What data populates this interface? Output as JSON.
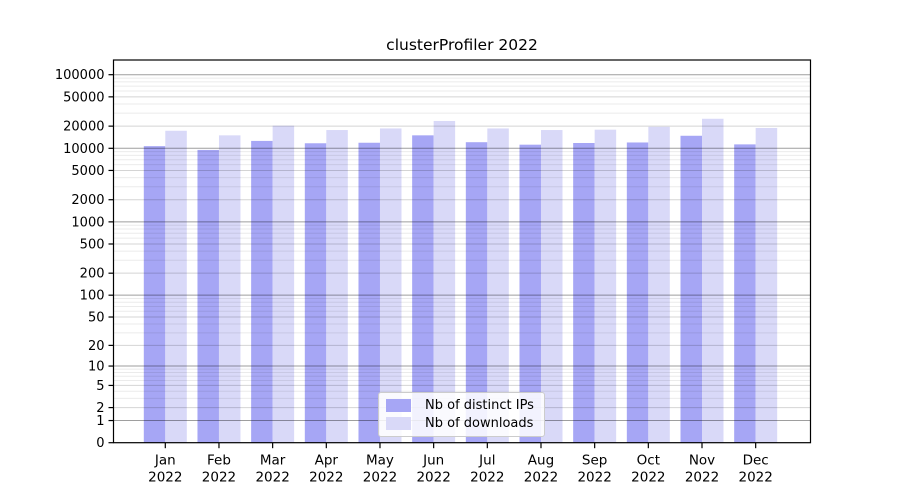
{
  "figure": {
    "title": "clusterProfiler 2022"
  },
  "chart_data": {
    "type": "bar",
    "title": "clusterProfiler 2022",
    "categories": [
      "Jan 2022",
      "Feb 2022",
      "Mar 2022",
      "Apr 2022",
      "May 2022",
      "Jun 2022",
      "Jul 2022",
      "Aug 2022",
      "Sep 2022",
      "Oct 2022",
      "Nov 2022",
      "Dec 2022"
    ],
    "series": [
      {
        "name": "Nb of distinct IPs",
        "color": "#a6a6f5",
        "values": [
          10700,
          9500,
          12600,
          11700,
          11900,
          15000,
          12100,
          11200,
          11800,
          12000,
          14800,
          11300
        ]
      },
      {
        "name": "Nb of downloads",
        "color": "#d9d9f8",
        "values": [
          17300,
          15000,
          20300,
          17700,
          18600,
          23500,
          18600,
          17700,
          17900,
          19600,
          25200,
          18900
        ]
      }
    ],
    "xlabel": "",
    "ylabel": "",
    "yscale": "log1p",
    "ylim": [
      0,
      150000
    ],
    "yticks": [
      0,
      1,
      2,
      5,
      10,
      20,
      50,
      100,
      200,
      500,
      1000,
      2000,
      5000,
      10000,
      20000,
      50000,
      100000
    ],
    "grid": true,
    "legend_position": "lower-center-inside",
    "colors": {
      "axis": "#000000",
      "grid_major": "rgba(0,0,0,0.38)",
      "grid_mid": "rgba(0,0,0,0.17)",
      "grid_minor": "rgba(0,0,0,0.08)"
    }
  }
}
